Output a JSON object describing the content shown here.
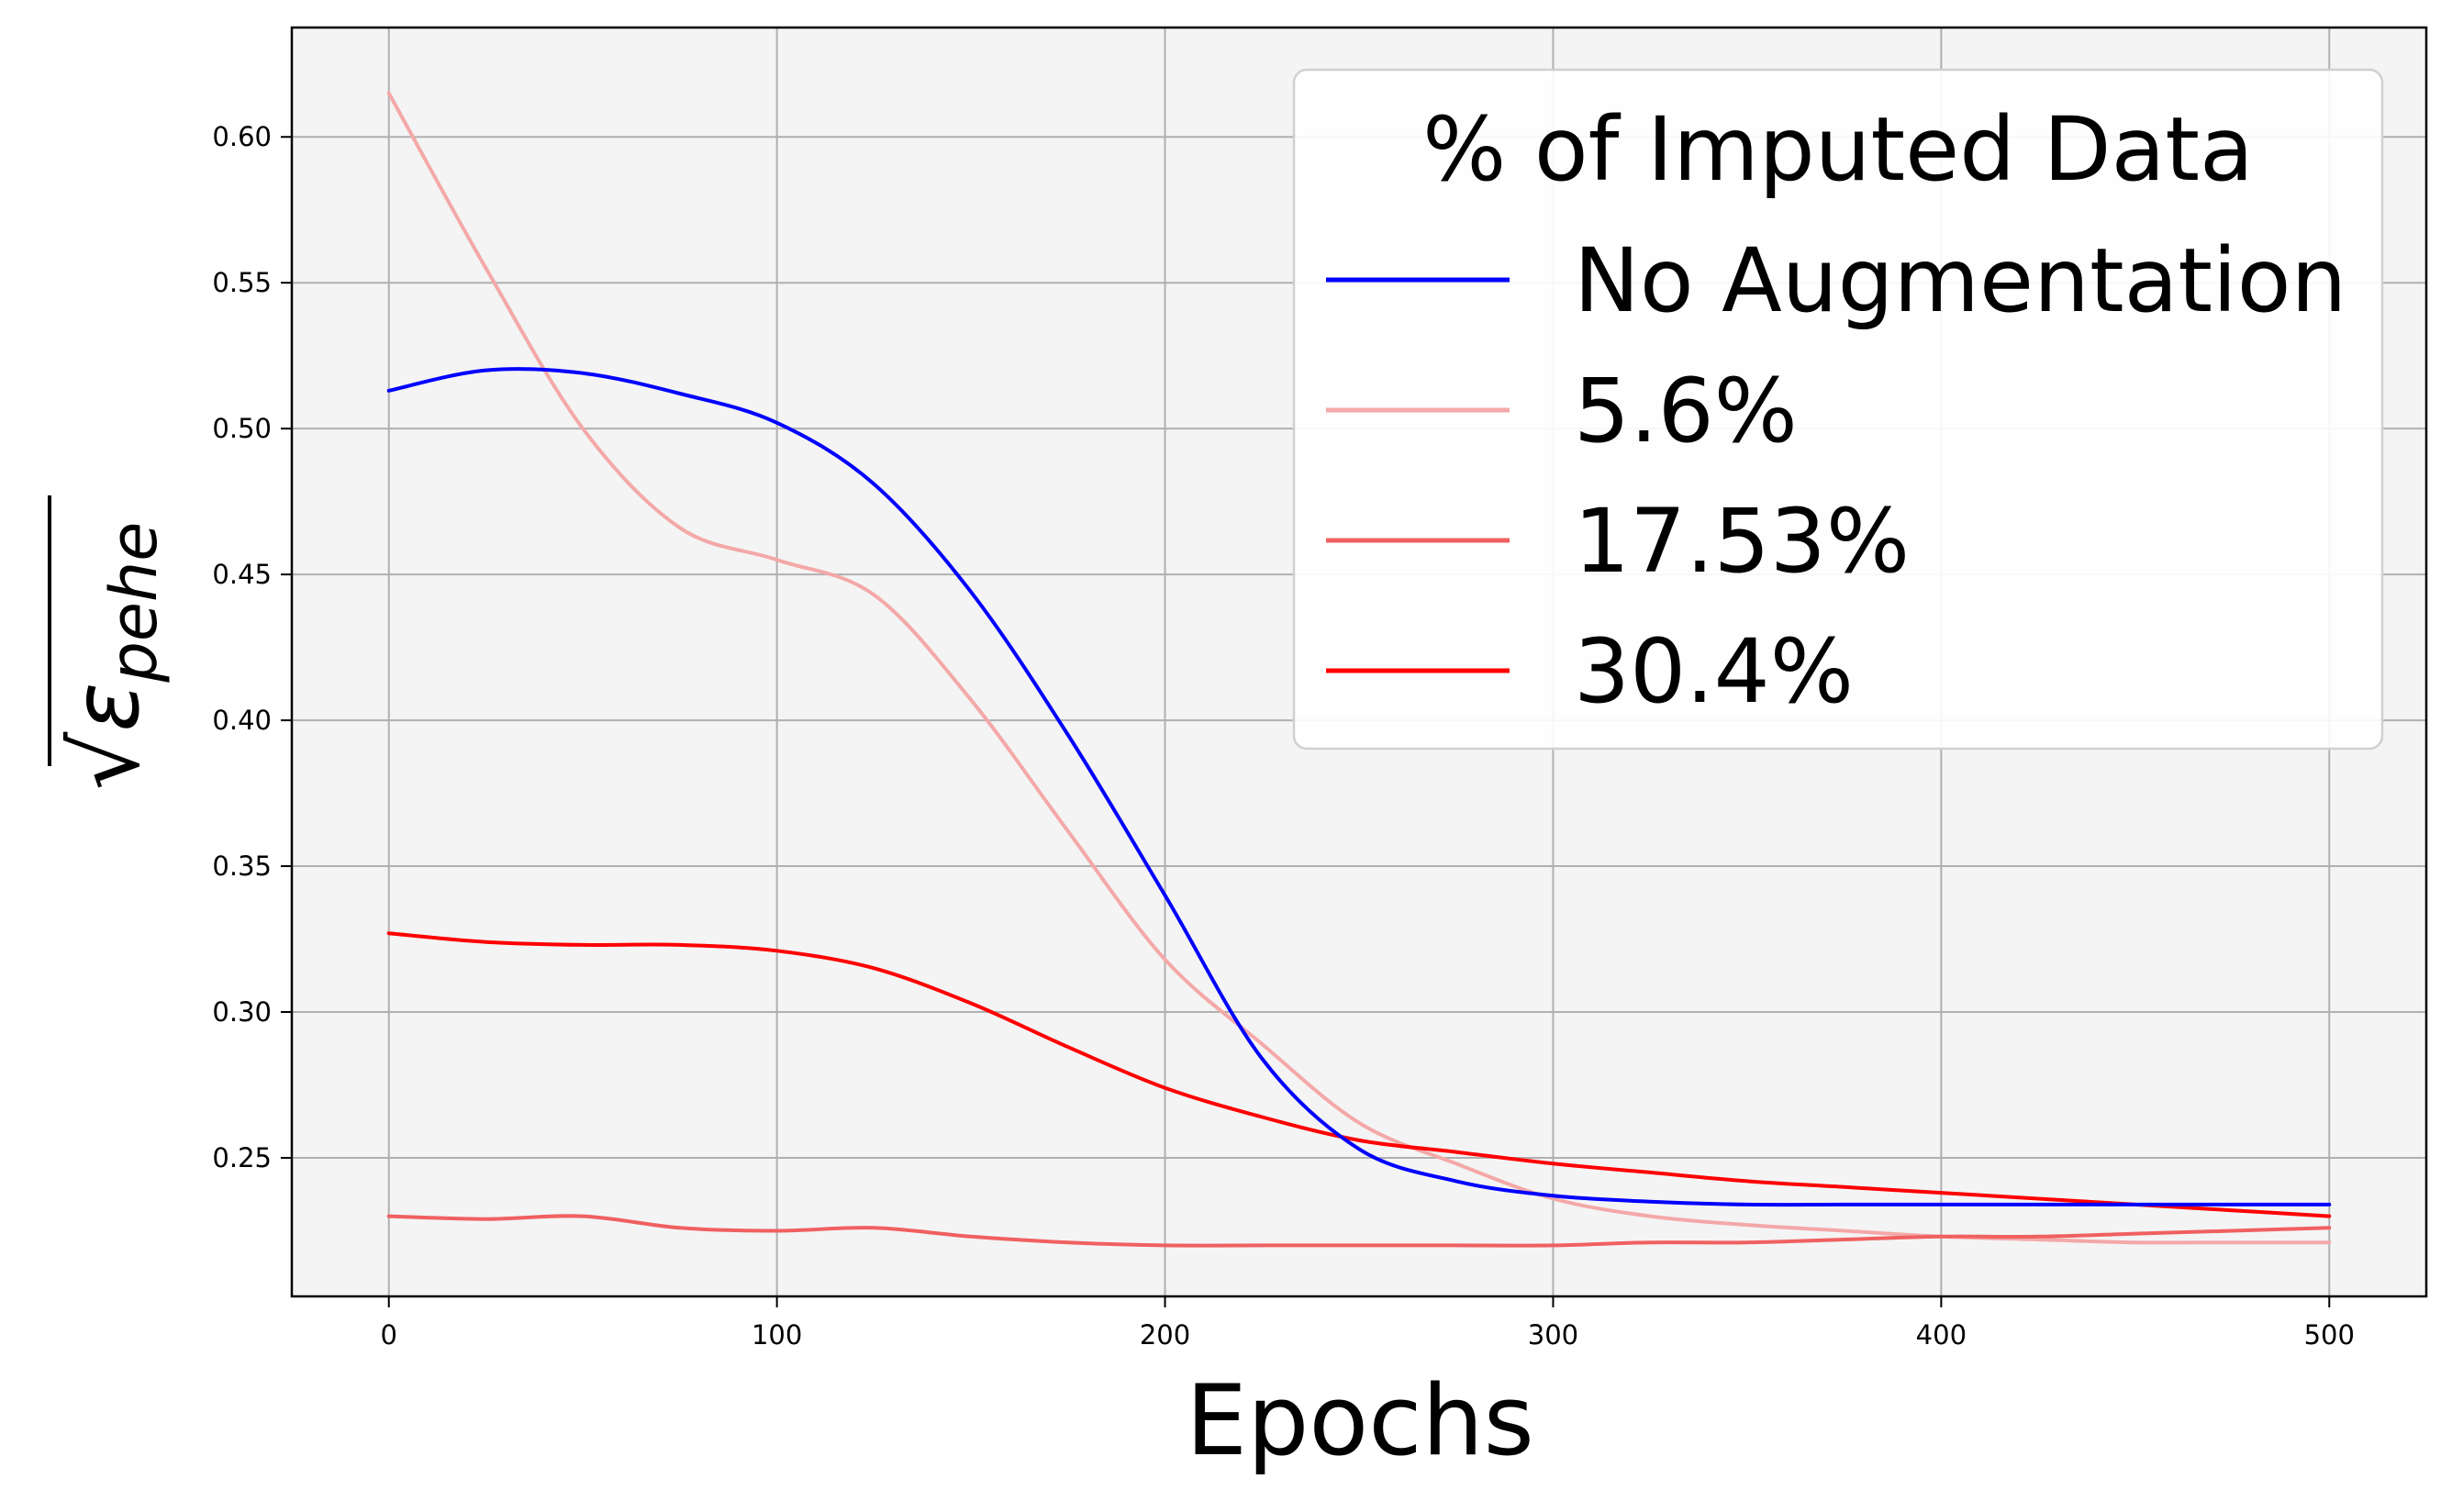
{
  "chart_data": {
    "type": "line",
    "xlabel": "Epochs",
    "ylabel": "√ε_pehe",
    "ylabel_parts": {
      "radical": "√",
      "symbol": "ε",
      "subscript": "pehe"
    },
    "xlim": [
      -25,
      525
    ],
    "ylim": [
      0.2025,
      0.6375
    ],
    "xticks": [
      0,
      100,
      200,
      300,
      400,
      500
    ],
    "xtick_labels": [
      "0",
      "100",
      "200",
      "300",
      "400",
      "500"
    ],
    "yticks": [
      0.25,
      0.3,
      0.35,
      0.4,
      0.45,
      0.5,
      0.55,
      0.6
    ],
    "ytick_labels": [
      "0.25",
      "0.30",
      "0.35",
      "0.40",
      "0.45",
      "0.50",
      "0.55",
      "0.60"
    ],
    "grid": true,
    "legend": {
      "title": "% of Imputed Data",
      "position": "top-right"
    },
    "x": [
      0,
      25,
      50,
      75,
      100,
      125,
      150,
      175,
      200,
      225,
      250,
      275,
      300,
      325,
      350,
      375,
      400,
      425,
      450,
      475,
      500
    ],
    "series": [
      {
        "name": "No Augmentation",
        "color": "#0000ff",
        "values": [
          0.513,
          0.52,
          0.519,
          0.512,
          0.502,
          0.481,
          0.444,
          0.395,
          0.34,
          0.284,
          0.253,
          0.242,
          0.237,
          0.235,
          0.234,
          0.234,
          0.234,
          0.234,
          0.234,
          0.234,
          0.234
        ]
      },
      {
        "name": "5.6%",
        "color": "#f4a8a8",
        "values": [
          0.615,
          0.555,
          0.5,
          0.466,
          0.455,
          0.443,
          0.407,
          0.362,
          0.318,
          0.289,
          0.262,
          0.248,
          0.236,
          0.23,
          0.227,
          0.225,
          0.223,
          0.222,
          0.221,
          0.221,
          0.221
        ]
      },
      {
        "name": "17.53%",
        "color": "#f06060",
        "values": [
          0.23,
          0.229,
          0.23,
          0.226,
          0.225,
          0.226,
          0.223,
          0.221,
          0.22,
          0.22,
          0.22,
          0.22,
          0.22,
          0.221,
          0.221,
          0.222,
          0.223,
          0.223,
          0.224,
          0.225,
          0.226
        ]
      },
      {
        "name": "30.4%",
        "color": "#ff0000",
        "values": [
          0.327,
          0.324,
          0.323,
          0.323,
          0.321,
          0.315,
          0.303,
          0.288,
          0.274,
          0.264,
          0.256,
          0.252,
          0.248,
          0.245,
          0.242,
          0.24,
          0.238,
          0.236,
          0.234,
          0.232,
          0.23
        ]
      }
    ]
  }
}
